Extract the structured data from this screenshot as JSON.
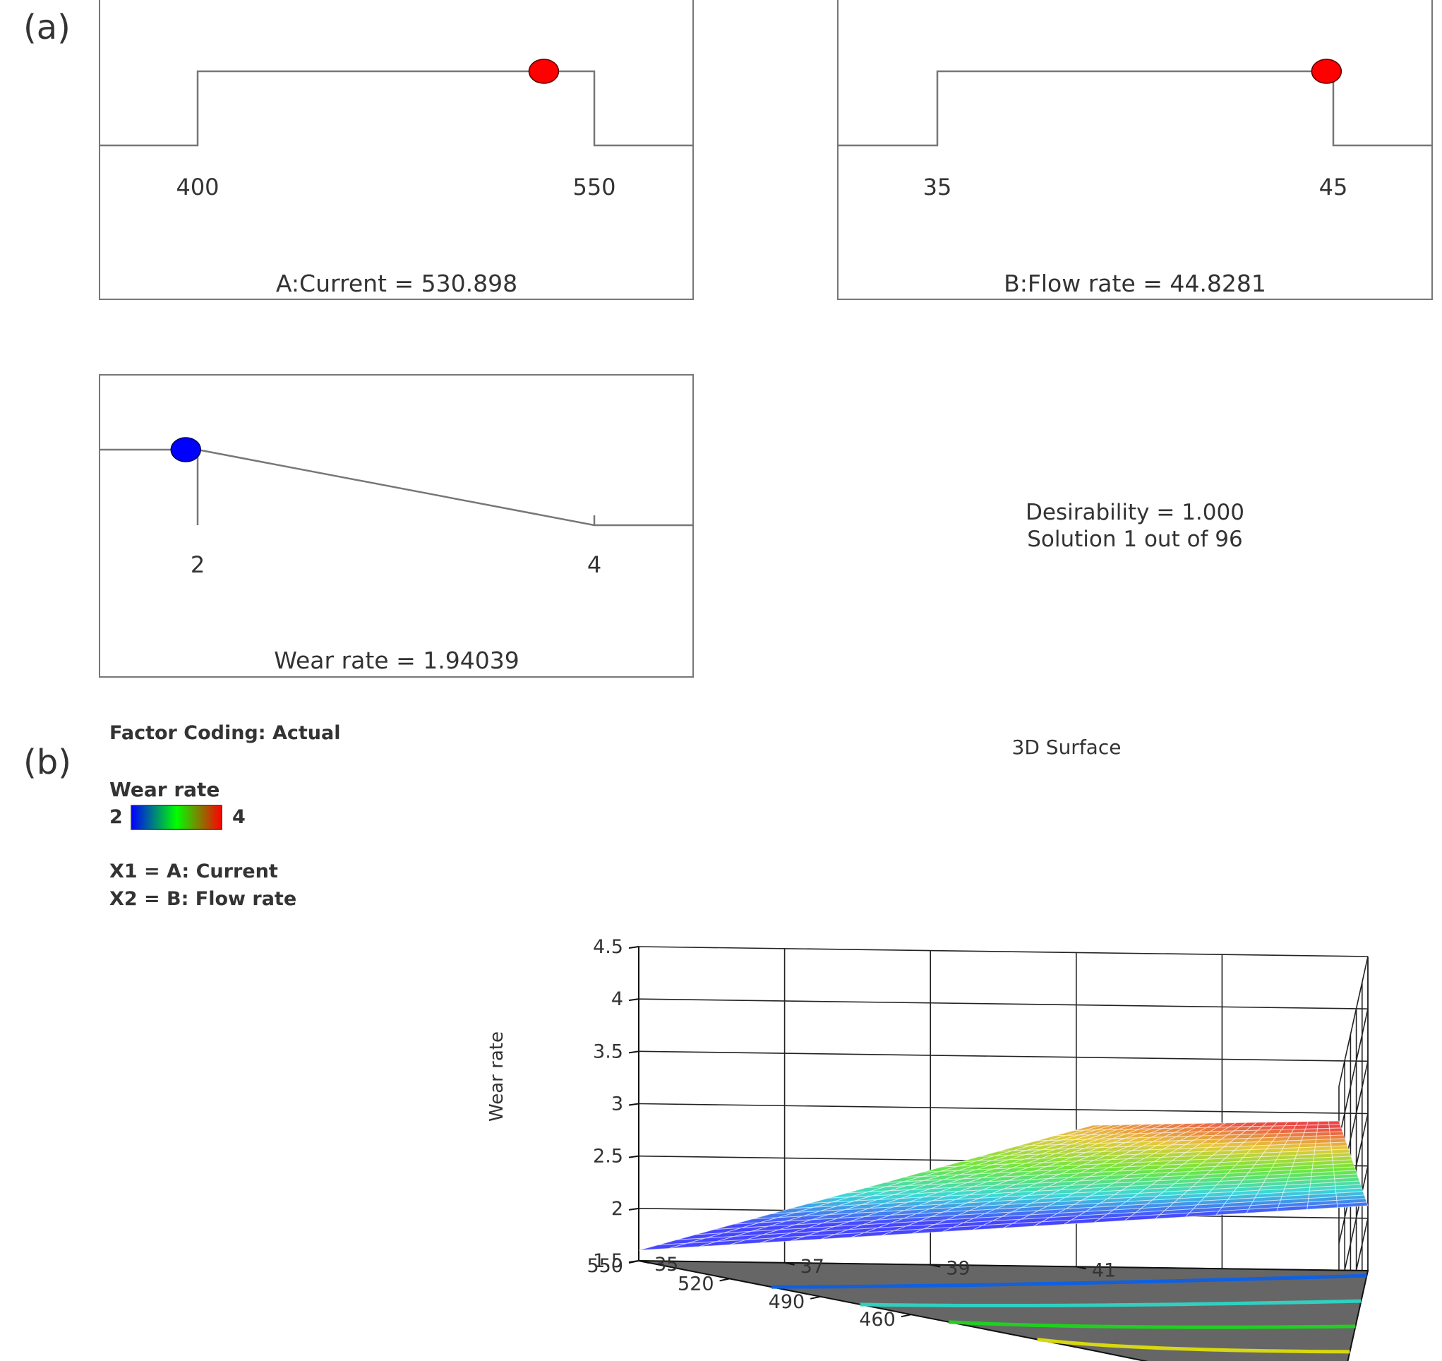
{
  "panel_a": {
    "label": "(a)",
    "current": {
      "low": "400",
      "high": "550",
      "caption": "A:Current = 530.898"
    },
    "flow": {
      "low": "35",
      "high": "45",
      "caption": "B:Flow rate = 44.8281"
    },
    "wear": {
      "low": "2",
      "high": "4",
      "caption": "Wear rate = 1.94039"
    },
    "desirability": {
      "line1": "Desirability = 1.000",
      "line2": "Solution 1 out of 96"
    },
    "marker_colors": {
      "factor": "#ff0000",
      "response": "#0000ff"
    }
  },
  "panel_b": {
    "label": "(b)",
    "factor_coding": "Factor Coding: Actual",
    "legend": {
      "title": "Wear rate",
      "min": "2",
      "max": "4"
    },
    "x1": "X1 = A: Current",
    "x2": "X2 = B: Flow rate"
  },
  "chart_data": [
    {
      "type": "line",
      "x_range": [
        400,
        550
      ],
      "ramp": [
        {
          "x": 400,
          "y": 0
        },
        {
          "x": 400,
          "y": 1
        },
        {
          "x": 550,
          "y": 1
        },
        {
          "x": 550,
          "y": 0
        }
      ],
      "marker": 530.898,
      "tick_labels": [
        "400",
        "550"
      ]
    },
    {
      "type": "line",
      "x_range": [
        35,
        45
      ],
      "ramp": [
        {
          "x": 35,
          "y": 0
        },
        {
          "x": 35,
          "y": 1
        },
        {
          "x": 45,
          "y": 1
        },
        {
          "x": 45,
          "y": 0
        }
      ],
      "marker": 44.8281,
      "tick_labels": [
        "35",
        "45"
      ]
    },
    {
      "type": "line",
      "x_range": [
        2,
        4
      ],
      "ramp": [
        {
          "x": 2,
          "y": 1
        },
        {
          "x": 4,
          "y": 0
        }
      ],
      "marker": 1.94039,
      "tick_labels": [
        "2",
        "4"
      ]
    },
    {
      "type": "surface",
      "title": "3D Surface",
      "zlabel": "Wear rate",
      "z_ticks": [
        "1.5",
        "2",
        "2.5",
        "3",
        "3.5",
        "4",
        "4.5"
      ],
      "x1_ticks": [
        "550",
        "520",
        "490",
        "460"
      ],
      "x2_ticks": [
        "35",
        "37",
        "39",
        "41"
      ],
      "x1_range": [
        400,
        550
      ],
      "x2_range": [
        35,
        45
      ],
      "zlim": [
        1.5,
        4.5
      ],
      "colormap": [
        "#0000ff",
        "#00ff00",
        "#ff0000"
      ],
      "color_range": [
        2,
        4
      ],
      "floor_color": "#666666",
      "contours": [
        {
          "level": 2.2,
          "color": "#1060e0"
        },
        {
          "level": 2.6,
          "color": "#30d0c0"
        },
        {
          "level": 3.0,
          "color": "#20d020"
        },
        {
          "level": 3.4,
          "color": "#d8d810"
        },
        {
          "level": 3.8,
          "color": "#f07010"
        }
      ]
    }
  ]
}
